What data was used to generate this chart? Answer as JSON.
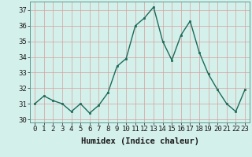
{
  "x": [
    0,
    1,
    2,
    3,
    4,
    5,
    6,
    7,
    8,
    9,
    10,
    11,
    12,
    13,
    14,
    15,
    16,
    17,
    18,
    19,
    20,
    21,
    22,
    23
  ],
  "y": [
    31.0,
    31.5,
    31.2,
    31.0,
    30.5,
    31.0,
    30.4,
    30.9,
    31.7,
    33.4,
    33.9,
    36.0,
    36.5,
    37.2,
    35.0,
    33.8,
    35.4,
    36.3,
    34.3,
    32.9,
    31.9,
    31.0,
    30.5,
    31.9
  ],
  "line_color": "#1a6b5a",
  "marker": "s",
  "marker_size": 2.0,
  "bg_color": "#d4f0eb",
  "grid_color": "#d4a0a0",
  "ylabel_ticks": [
    30,
    31,
    32,
    33,
    34,
    35,
    36,
    37
  ],
  "ylim": [
    29.8,
    37.55
  ],
  "xlim": [
    -0.5,
    23.5
  ],
  "xlabel": "Humidex (Indice chaleur)",
  "xlabel_fontsize": 7.5,
  "tick_fontsize": 6.5,
  "linewidth": 1.0
}
